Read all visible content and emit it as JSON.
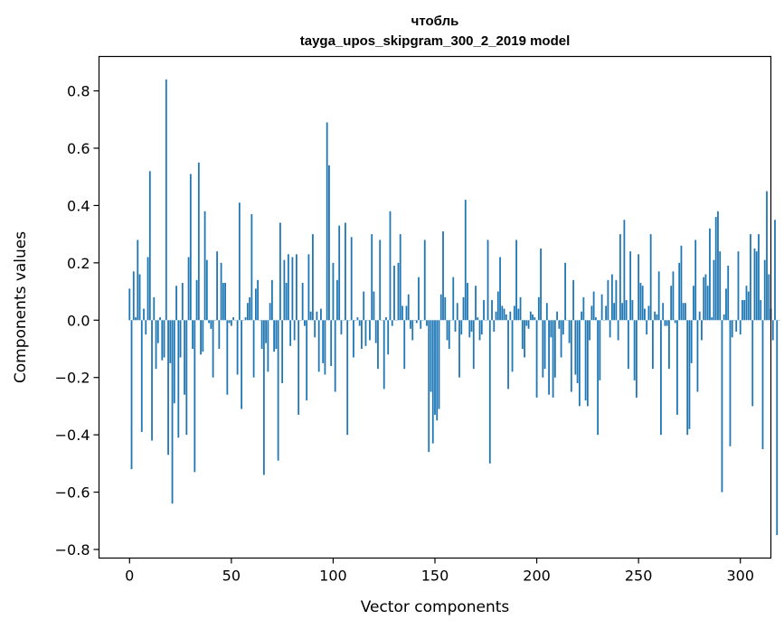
{
  "chart_data": {
    "type": "bar",
    "title": "чтобль",
    "subtitle": "tayga_upos_skipgram_300_2_2019 model",
    "xlabel": "Vector components",
    "ylabel": "Components values",
    "xlim": [
      -15,
      315
    ],
    "ylim": [
      -0.83,
      0.92
    ],
    "xticks": [
      0,
      50,
      100,
      150,
      200,
      250,
      300
    ],
    "yticks": [
      -0.8,
      -0.6,
      -0.4,
      -0.2,
      0.0,
      0.2,
      0.4,
      0.6,
      0.8
    ],
    "ytick_labels": [
      "−0.8",
      "−0.6",
      "−0.4",
      "−0.2",
      "0.0",
      "0.2",
      "0.4",
      "0.6",
      "0.8"
    ],
    "grid": false,
    "bar_color": "#1f77b4",
    "x_start": 0,
    "values": [
      0.11,
      -0.52,
      0.17,
      0.01,
      0.28,
      0.16,
      -0.39,
      0.04,
      -0.05,
      0.22,
      0.52,
      -0.42,
      0.08,
      -0.17,
      -0.08,
      0.01,
      -0.14,
      -0.13,
      0.84,
      -0.47,
      -0.15,
      -0.64,
      -0.29,
      0.12,
      -0.41,
      -0.13,
      0.13,
      -0.26,
      -0.4,
      0.22,
      0.51,
      -0.1,
      -0.53,
      0.14,
      0.55,
      -0.12,
      -0.11,
      0.38,
      0.21,
      -0.01,
      -0.03,
      -0.2,
      0.0,
      0.24,
      -0.1,
      0.2,
      0.13,
      0.13,
      -0.26,
      -0.01,
      -0.02,
      0.01,
      0.0,
      -0.19,
      0.41,
      -0.31,
      0.0,
      0.01,
      0.06,
      0.08,
      0.37,
      -0.2,
      0.11,
      0.14,
      0.0,
      -0.1,
      -0.54,
      -0.08,
      -0.18,
      0.06,
      0.14,
      -0.11,
      -0.1,
      -0.49,
      0.34,
      -0.22,
      0.21,
      0.13,
      0.23,
      -0.09,
      0.22,
      -0.07,
      0.23,
      -0.33,
      0.0,
      0.13,
      -0.02,
      -0.28,
      0.23,
      0.03,
      0.3,
      -0.06,
      0.03,
      -0.18,
      0.04,
      -0.15,
      -0.19,
      0.69,
      0.54,
      -0.16,
      0.2,
      -0.25,
      0.14,
      0.33,
      -0.05,
      0.0,
      0.34,
      -0.4,
      0.0,
      0.29,
      -0.13,
      0.0,
      0.01,
      -0.02,
      -0.1,
      0.1,
      -0.09,
      0.0,
      -0.07,
      0.3,
      0.1,
      -0.08,
      -0.17,
      0.28,
      0.0,
      -0.24,
      0.01,
      -0.12,
      0.38,
      -0.02,
      0.19,
      0.0,
      0.2,
      0.3,
      0.05,
      -0.17,
      0.05,
      0.09,
      -0.03,
      -0.07,
      0.0,
      -0.01,
      0.15,
      -0.03,
      0.0,
      0.28,
      -0.02,
      -0.46,
      -0.25,
      -0.43,
      -0.33,
      -0.35,
      -0.31,
      0.09,
      0.31,
      0.08,
      -0.07,
      -0.1,
      0.0,
      0.15,
      -0.04,
      0.06,
      -0.2,
      -0.05,
      0.08,
      0.42,
      0.13,
      -0.06,
      -0.04,
      -0.17,
      0.12,
      0.01,
      -0.07,
      -0.05,
      0.07,
      0.0,
      0.28,
      -0.5,
      0.07,
      -0.04,
      0.03,
      0.1,
      0.22,
      0.05,
      0.04,
      0.02,
      -0.24,
      0.03,
      -0.18,
      0.05,
      0.28,
      0.04,
      0.08,
      -0.1,
      -0.13,
      -0.02,
      -0.03,
      0.03,
      0.02,
      0.01,
      -0.27,
      0.08,
      0.25,
      -0.2,
      -0.17,
      0.06,
      -0.26,
      -0.06,
      -0.27,
      -0.2,
      0.03,
      -0.03,
      -0.13,
      -0.05,
      0.2,
      0.0,
      -0.08,
      -0.25,
      0.14,
      -0.19,
      -0.22,
      -0.3,
      0.03,
      0.08,
      -0.28,
      -0.3,
      -0.07,
      0.05,
      0.1,
      0.01,
      -0.4,
      -0.21,
      0.09,
      0.0,
      0.05,
      0.14,
      -0.06,
      0.16,
      0.06,
      0.14,
      -0.07,
      0.3,
      0.06,
      0.35,
      0.07,
      -0.17,
      0.24,
      0.07,
      -0.21,
      -0.27,
      0.23,
      0.13,
      0.12,
      0.04,
      -0.05,
      0.05,
      0.3,
      -0.17,
      0.03,
      0.02,
      0.17,
      -0.4,
      0.06,
      -0.02,
      -0.02,
      -0.17,
      0.12,
      0.17,
      -0.01,
      -0.33,
      0.2,
      0.26,
      0.06,
      0.06,
      -0.4,
      -0.38,
      -0.15,
      0.12,
      0.28,
      -0.25,
      0.03,
      -0.07,
      0.15,
      0.16,
      0.12,
      0.32,
      0.01,
      0.21,
      0.36,
      0.38,
      0.24,
      -0.6,
      0.02,
      0.11,
      0.19,
      -0.44,
      -0.06,
      0.0,
      -0.04,
      0.24,
      -0.05,
      0.07,
      0.07,
      0.12,
      0.1,
      0.3,
      -0.3,
      0.25,
      0.24,
      0.3,
      0.07,
      -0.45,
      0.21,
      0.45,
      0.16,
      0.04,
      -0.07,
      0.35,
      -0.75,
      0.0
    ]
  }
}
